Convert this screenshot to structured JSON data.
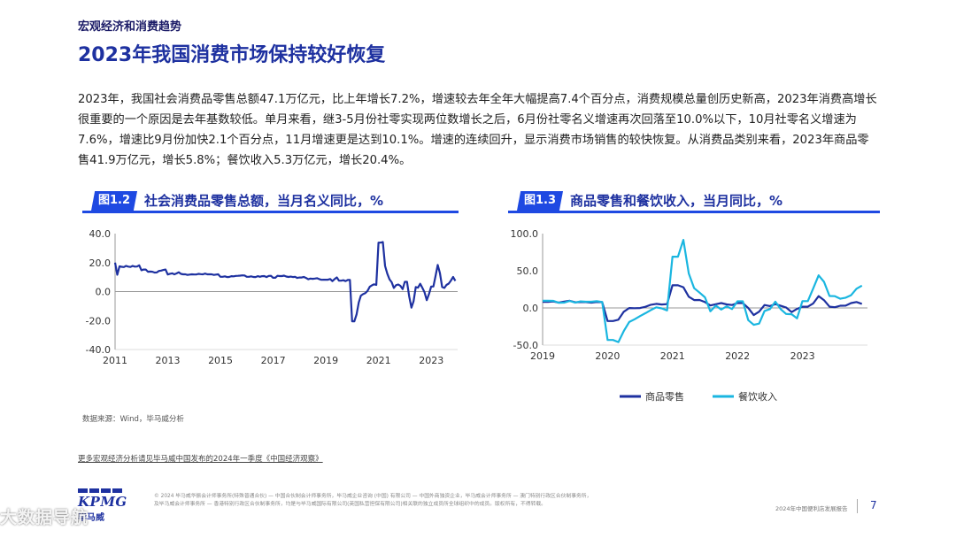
{
  "header": {
    "section": "宏观经济和消费趋势",
    "title": "2023年我国消费市场保持较好恢复"
  },
  "body_text": "2023年，我国社会消费品零售总额47.1万亿元，比上年增长7.2%，增速较去年全年大幅提高7.4个百分点，消费规模总量创历史新高，2023年消费高增长很重要的一个原因是去年基数较低。单月来看，继3-5月份社零实现两位数增长之后，6月份社零名义增速再次回落至10.0%以下，10月社零名义增速为7.6%，增速比9月份加快2.1个百分点，11月增速更是达到10.1%。增速的连续回升，显示消费市场销售的较快恢复。从消费品类别来看，2023年商品零售41.9万亿元，增长5.8%；餐饮收入5.3万亿元，增长20.4%。",
  "figures": {
    "fig1": {
      "tag": "图1.2",
      "title": "社会消费品零售总额，当月名义同比，%"
    },
    "fig2": {
      "tag": "图1.3",
      "title": "商品零售和餐饮收入，当月同比，%"
    }
  },
  "colors": {
    "brand": "#1e31a0",
    "accent": "#1e49e2",
    "series1": "#1e31a0",
    "series2": "#1ab6e0"
  },
  "chart_data": [
    {
      "type": "line",
      "x_start": 2011.0,
      "x_step": 0.0833,
      "xticks": [
        "2011",
        "2013",
        "2015",
        "2017",
        "2019",
        "2021",
        "2023"
      ],
      "ytick_labels": [
        "40.0",
        "20.0",
        "0.0",
        "-20.0",
        "-40.0"
      ],
      "ylim": [
        -40,
        40
      ],
      "xlim": [
        2011,
        2024
      ],
      "series": [
        {
          "color": "#1e31a0",
          "values": [
            20,
            11.6,
            17.4,
            17.1,
            16.9,
            17.7,
            17.2,
            17.0,
            17.7,
            17.2,
            17.3,
            18.1,
            14.7,
            15.2,
            15.2,
            13.7,
            13.8,
            13.7,
            13.1,
            13.2,
            14.2,
            14.5,
            14.9,
            15.2,
            11.8,
            12.3,
            12.6,
            11.9,
            12.5,
            13.3,
            12.2,
            11.9,
            11.9,
            11.5,
            11.7,
            11.9,
            11.8,
            11.8,
            12.2,
            12.0,
            11.9,
            12.4,
            11.9,
            11.9,
            11.9,
            11.5,
            11.7,
            11.9,
            10.2,
            10.2,
            10.5,
            10.0,
            10.1,
            10.6,
            10.5,
            10.8,
            10.9,
            11.0,
            11.2,
            11.1,
            10.2,
            10.2,
            10.5,
            10.1,
            10.0,
            10.6,
            10.2,
            10.6,
            10.7,
            10.0,
            10.8,
            10.9,
            9.5,
            9.5,
            10.9,
            10.7,
            10.7,
            11.0,
            10.4,
            10.1,
            10.3,
            10.0,
            10.2,
            9.4,
            9.7,
            9.7,
            10.1,
            9.4,
            8.5,
            9.0,
            8.8,
            9.0,
            9.2,
            8.6,
            8.1,
            8.2,
            8.2,
            8.2,
            8.7,
            7.2,
            8.6,
            9.8,
            7.6,
            7.5,
            7.8,
            7.2,
            8.0,
            8.0,
            -20.5,
            -20.5,
            -15.8,
            -7.5,
            -2.8,
            -1.8,
            -1.1,
            0.5,
            3.3,
            4.3,
            5.0,
            4.6,
            33.8,
            33.8,
            34.2,
            17.7,
            12.4,
            8.5,
            6.4,
            2.5,
            4.4,
            4.9,
            3.9,
            1.7,
            6.7,
            6.7,
            -3.5,
            -11.1,
            -6.7,
            3.1,
            2.7,
            5.4,
            2.5,
            -0.5,
            -5.9,
            -1.8,
            3.5,
            3.5,
            10.6,
            18.4,
            12.7,
            3.1,
            2.5,
            4.6,
            5.5,
            7.6,
            10.1,
            7.4
          ]
        }
      ]
    },
    {
      "type": "line",
      "x_start": 2019.0,
      "x_step": 0.0833,
      "xticks": [
        "2019",
        "2020",
        "2021",
        "2022",
        "2023"
      ],
      "ytick_labels": [
        "100.0",
        "50.0",
        "0.0",
        "-50.0"
      ],
      "ylim": [
        -50,
        100
      ],
      "xlim": [
        2019,
        2024
      ],
      "legend": "bottom",
      "series": [
        {
          "name": "商品零售",
          "color": "#1e31a0",
          "values": [
            8.2,
            8.2,
            8.7,
            7.2,
            8.6,
            9.6,
            7.6,
            7.9,
            7.8,
            7.2,
            8.0,
            7.9,
            -17.6,
            -17.6,
            -15.8,
            -5.1,
            -0.1,
            -0.3,
            -0.1,
            1.5,
            4.3,
            5.5,
            4.6,
            5.1,
            30.5,
            30.5,
            27.9,
            15.1,
            10.6,
            10.7,
            7.9,
            3.3,
            5.0,
            6.5,
            4.8,
            3.9,
            6.5,
            6.5,
            -0.1,
            -9.7,
            -5.0,
            3.9,
            2.5,
            5.1,
            2.8,
            0.6,
            -5.6,
            -1.3,
            1.7,
            1.7,
            6.1,
            15.9,
            10.5,
            1.7,
            1.0,
            3.0,
            3.1,
            6.5,
            8.0,
            5.5
          ]
        },
        {
          "name": "餐饮收入",
          "color": "#1ab6e0",
          "values": [
            9.7,
            9.7,
            9.5,
            6.9,
            7.2,
            9.4,
            7.2,
            8.8,
            8.3,
            8.3,
            9.0,
            8.0,
            -43.1,
            -43.1,
            -46.0,
            -31.1,
            -18.9,
            -15.2,
            -11.0,
            -7.0,
            -2.9,
            0.8,
            -0.6,
            -3.3,
            68.9,
            68.9,
            91.6,
            46.4,
            26.6,
            20.6,
            14.3,
            -4.5,
            3.1,
            -2.2,
            2.1,
            -1.5,
            8.9,
            8.9,
            -16.4,
            -22.7,
            -21.1,
            -4.0,
            -1.5,
            8.4,
            -1.7,
            -8.1,
            -8.4,
            -14.1,
            9.2,
            9.2,
            26.3,
            43.8,
            35.1,
            16.1,
            15.8,
            12.4,
            13.8,
            17.1,
            25.8,
            30.0
          ]
        }
      ]
    }
  ],
  "footer": {
    "source": "数据来源：Wind，毕马威分析",
    "more": "更多宏观经济分析请见毕马威中国发布的2024年一季度《中国经济观察》",
    "logo_word": "KPMG",
    "logo_cn": "毕马威",
    "legal_1": "© 2024 毕马威华振会计师事务所(特殊普通合伙) — 中国合伙制会计师事务所，毕马威企业咨询 (中国) 有限公司 — 中国外商独资企业，毕马威会计师事务所 — 澳门特别行政区合伙制事务所，",
    "legal_2": "及毕马威会计师事务所 — 香港特别行政区合伙制事务所，均是与毕马威国际有限公司(英国私营担保有限公司)相关联的独立成员所全球组织中的成员。版权所有，不得转载。",
    "report": "2024年中国便利店发展报告",
    "page": "7",
    "watermark": "大数据导航"
  }
}
